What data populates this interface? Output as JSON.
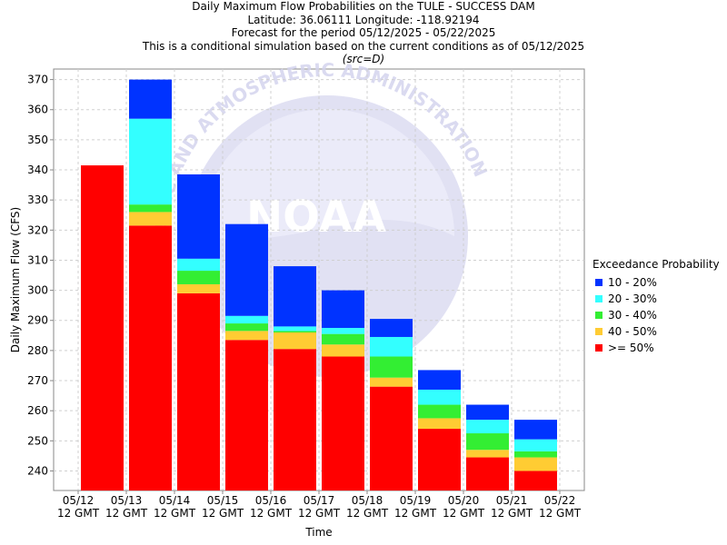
{
  "titles": {
    "line1": "Daily Maximum Flow Probabilities on the TULE - SUCCESS DAM",
    "line2": "Latitude: 36.06111 Longitude: -118.92194",
    "line3": "Forecast for the period 05/12/2025 - 05/22/2025",
    "line4": "This is a conditional simulation based on the current conditions as of 05/12/2025",
    "line5": "(src=D)"
  },
  "watermark": {
    "text": "NOAA",
    "ring_text": "OCEANIC AND ATMOSPHERIC ADMINISTRATION"
  },
  "legend": {
    "title": "Exceedance Probability",
    "items": [
      {
        "label": "10 - 20%",
        "color": "#0033ff"
      },
      {
        "label": "20 - 30%",
        "color": "#33ffff"
      },
      {
        "label": "30 - 40%",
        "color": "#33ee33"
      },
      {
        "label": "40 - 50%",
        "color": "#ffcc33"
      },
      {
        "label": ">= 50%",
        "color": "#ff0000"
      }
    ]
  },
  "chart_data": {
    "type": "bar",
    "stacked": true,
    "xlabel": "Time",
    "ylabel": "Daily Maximum Flow (CFS)",
    "ylim": [
      233.5,
      373.5
    ],
    "yticks": [
      240,
      250,
      260,
      270,
      280,
      290,
      300,
      310,
      320,
      330,
      340,
      350,
      360,
      370
    ],
    "xticks": [
      {
        "date": "05/12",
        "time": "12 GMT"
      },
      {
        "date": "05/13",
        "time": "12 GMT"
      },
      {
        "date": "05/14",
        "time": "12 GMT"
      },
      {
        "date": "05/15",
        "time": "12 GMT"
      },
      {
        "date": "05/16",
        "time": "12 GMT"
      },
      {
        "date": "05/17",
        "time": "12 GMT"
      },
      {
        "date": "05/18",
        "time": "12 GMT"
      },
      {
        "date": "05/19",
        "time": "12 GMT"
      },
      {
        "date": "05/20",
        "time": "12 GMT"
      },
      {
        "date": "05/21",
        "time": "12 GMT"
      },
      {
        "date": "05/22",
        "time": "12 GMT"
      }
    ],
    "grid": true,
    "legend_position": "right",
    "series": [
      {
        "name": ">= 50%",
        "color": "#ff0000",
        "tops": [
          341.5,
          321.5,
          299,
          283.5,
          280.5,
          278,
          268,
          254,
          244.5,
          240
        ]
      },
      {
        "name": "40 - 50%",
        "color": "#ffcc33",
        "tops": [
          341.5,
          326,
          302,
          286.5,
          286,
          282,
          271,
          257.5,
          247,
          244.5
        ]
      },
      {
        "name": "30 - 40%",
        "color": "#33ee33",
        "tops": [
          341.5,
          328.5,
          306.5,
          289,
          286.5,
          285.5,
          278,
          262,
          252.5,
          246.5
        ]
      },
      {
        "name": "20 - 30%",
        "color": "#33ffff",
        "tops": [
          341.5,
          357,
          310.5,
          291.5,
          288,
          287.5,
          284.5,
          267,
          257,
          250.5
        ]
      },
      {
        "name": "10 - 20%",
        "color": "#0033ff",
        "tops": [
          341.5,
          370,
          338.5,
          322,
          308,
          300,
          290.5,
          273.5,
          262,
          257
        ]
      }
    ]
  }
}
